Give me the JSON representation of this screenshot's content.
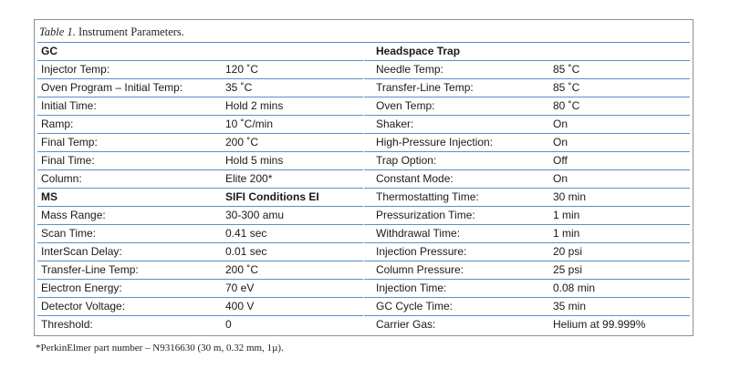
{
  "caption": {
    "label": "Table 1.",
    "text": " Instrument Parameters."
  },
  "left": [
    [
      "GC",
      ""
    ],
    [
      "Injector Temp:",
      "120 ˚C"
    ],
    [
      "Oven Program – Initial Temp:",
      "35 ˚C"
    ],
    [
      "Initial Time:",
      "Hold 2 mins"
    ],
    [
      "Ramp:",
      "10 ˚C/min"
    ],
    [
      "Final Temp:",
      "200 ˚C"
    ],
    [
      "Final Time:",
      "Hold 5 mins"
    ],
    [
      "Column:",
      "Elite 200*"
    ],
    [
      "MS",
      "SIFI Conditions EI"
    ],
    [
      "Mass Range:",
      "30-300 amu"
    ],
    [
      "Scan Time:",
      "0.41 sec"
    ],
    [
      "InterScan Delay:",
      "0.01 sec"
    ],
    [
      "Transfer-Line Temp:",
      "200 ˚C"
    ],
    [
      "Electron Energy:",
      "70 eV"
    ],
    [
      "Detector Voltage:",
      "400 V"
    ],
    [
      "Threshold:",
      " 0"
    ]
  ],
  "right": [
    [
      "Headspace Trap",
      ""
    ],
    [
      "Needle Temp:",
      "85 ˚C"
    ],
    [
      "Transfer-Line Temp:",
      "85 ˚C"
    ],
    [
      "Oven Temp:",
      "80 ˚C"
    ],
    [
      "Shaker:",
      "On"
    ],
    [
      "High-Pressure Injection:",
      "On"
    ],
    [
      "Trap Option:",
      "Off"
    ],
    [
      "Constant Mode:",
      "On"
    ],
    [
      "Thermostatting Time:",
      "30 min"
    ],
    [
      "Pressurization Time:",
      "1 min"
    ],
    [
      "Withdrawal Time:",
      "1 min"
    ],
    [
      "Injection Pressure:",
      "20 psi"
    ],
    [
      "Column Pressure:",
      "25 psi"
    ],
    [
      "Injection Time:",
      "0.08 min"
    ],
    [
      "GC Cycle Time:",
      "35 min"
    ],
    [
      "Carrier Gas:",
      "Helium at 99.999%"
    ]
  ],
  "header_rows": {
    "left": [
      0,
      8
    ],
    "right": [
      0
    ]
  },
  "footnote": "*PerkinElmer part number – N9316630 (30 m, 0.32 mm, 1µ).",
  "colors": {
    "rule": "#5b8fc7",
    "border": "#8a8f97"
  }
}
